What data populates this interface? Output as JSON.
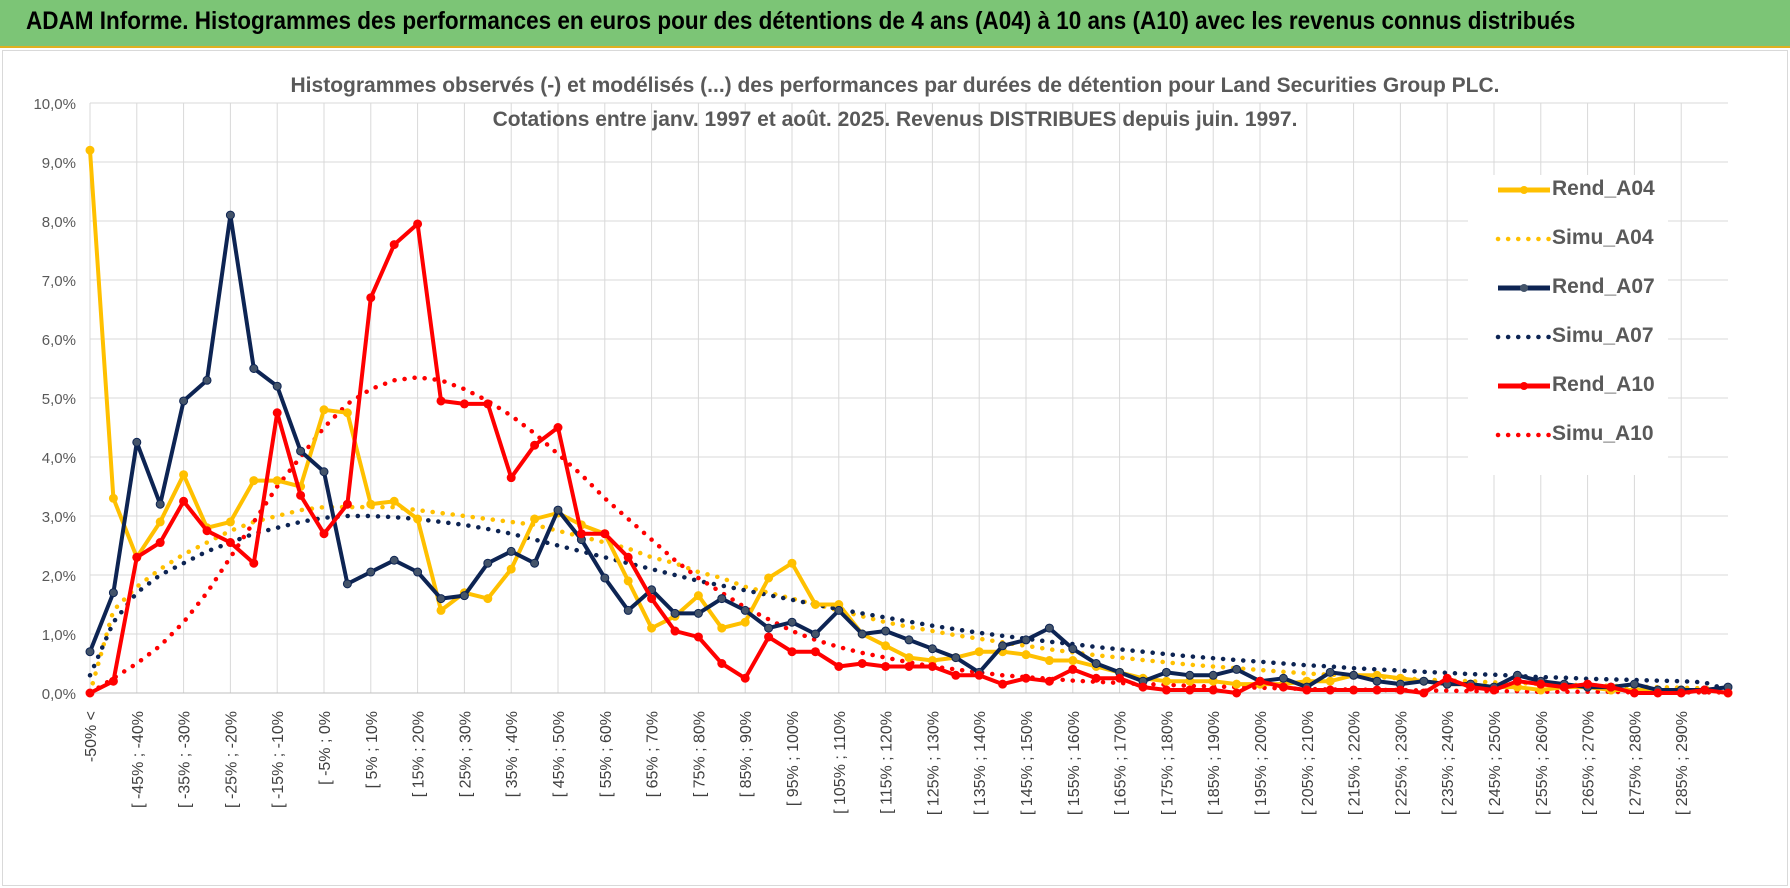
{
  "banner": {
    "title": "ADAM Informe. Histogrammes des performances en euros pour des détentions de 4 ans (A04) à 10 ans (A10) avec les revenus connus distribués"
  },
  "chart_data": {
    "type": "line",
    "title": "Histogrammes observés (-) et modélisés (...) des performances par durées de détention pour Land Securities Group PLC.",
    "subtitle": "Cotations entre janv. 1997 et août. 2025. Revenus DISTRIBUES depuis juin. 1997.",
    "ylim": [
      0,
      10
    ],
    "y_ticks": [
      "0,0%",
      "1,0%",
      "2,0%",
      "3,0%",
      "4,0%",
      "5,0%",
      "6,0%",
      "7,0%",
      "8,0%",
      "9,0%",
      "10,0%"
    ],
    "x_labels": [
      "-50% <",
      "[ -45% ; -40%",
      "[ -35% ; -30%",
      "[ -25% ; -20%",
      "[ -15% ; -10%",
      "[ -5% ; 0%",
      "[ 5% ; 10%",
      "[ 15% ; 20%",
      "[ 25% ; 30%",
      "[ 35% ; 40%",
      "[ 45% ; 50%",
      "[ 55% ; 60%",
      "[ 65% ; 70%",
      "[ 75% ; 80%",
      "[ 85% ; 90%",
      "[ 95% ; 100%",
      "[ 105% ; 110%",
      "[ 115% ; 120%",
      "[ 125% ; 130%",
      "[ 135% ; 140%",
      "[ 145% ; 150%",
      "[ 155% ; 160%",
      "[ 165% ; 170%",
      "[ 175% ; 180%",
      "[ 185% ; 190%",
      "[ 195% ; 200%",
      "[ 205% ; 210%",
      "[ 215% ; 220%",
      "[ 225% ; 230%",
      "[ 235% ; 240%",
      "[ 245% ; 250%",
      "[ 255% ; 260%",
      "[ 265% ; 270%",
      "[ 275% ; 280%",
      "[ 285% ; 290%"
    ],
    "grid": true,
    "legend_position": "right",
    "series": [
      {
        "name": "Rend_A04",
        "style": "solid",
        "color": "#ffc000",
        "values": [
          9.2,
          3.3,
          2.3,
          2.9,
          3.7,
          2.8,
          2.9,
          3.6,
          3.6,
          3.5,
          4.8,
          4.75,
          3.2,
          3.25,
          2.95,
          1.4,
          1.7,
          1.6,
          2.1,
          2.95,
          3.05,
          2.85,
          2.7,
          1.9,
          1.1,
          1.3,
          1.65,
          1.1,
          1.2,
          1.95,
          2.2,
          1.5,
          1.5,
          1.0,
          0.8,
          0.6,
          0.55,
          0.6,
          0.7,
          0.7,
          0.65,
          0.55,
          0.55,
          0.45,
          0.35,
          0.25,
          0.2,
          0.2,
          0.2,
          0.15,
          0.15,
          0.15,
          0.2,
          0.2,
          0.3,
          0.3,
          0.25,
          0.2,
          0.15,
          0.15,
          0.1,
          0.1,
          0.05,
          0.1,
          0.1,
          0.05,
          0.05,
          0.05,
          0.05,
          0.05,
          0.0
        ]
      },
      {
        "name": "Simu_A04",
        "style": "dotted",
        "color": "#ffc000",
        "values": [
          0.0,
          1.4,
          1.8,
          2.1,
          2.35,
          2.55,
          2.75,
          2.9,
          3.0,
          3.1,
          3.15,
          3.15,
          3.15,
          3.15,
          3.1,
          3.05,
          3.0,
          2.95,
          2.9,
          2.85,
          2.75,
          2.65,
          2.55,
          2.45,
          2.3,
          2.2,
          2.05,
          1.95,
          1.8,
          1.7,
          1.6,
          1.5,
          1.4,
          1.3,
          1.2,
          1.12,
          1.05,
          0.98,
          0.92,
          0.86,
          0.8,
          0.74,
          0.69,
          0.64,
          0.6,
          0.56,
          0.52,
          0.48,
          0.45,
          0.42,
          0.39,
          0.36,
          0.33,
          0.31,
          0.29,
          0.27,
          0.25,
          0.23,
          0.21,
          0.2,
          0.18,
          0.17,
          0.15,
          0.14,
          0.13,
          0.12,
          0.11,
          0.1,
          0.09,
          0.08,
          0.07
        ]
      },
      {
        "name": "Rend_A07",
        "style": "solid",
        "color": "#0d2453",
        "values": [
          0.7,
          1.7,
          4.25,
          3.2,
          4.95,
          5.3,
          8.1,
          5.5,
          5.2,
          4.1,
          3.75,
          1.85,
          2.05,
          2.25,
          2.05,
          1.6,
          1.65,
          2.2,
          2.4,
          2.2,
          3.1,
          2.6,
          1.95,
          1.4,
          1.75,
          1.35,
          1.35,
          1.6,
          1.4,
          1.1,
          1.2,
          1.0,
          1.4,
          1.0,
          1.05,
          0.9,
          0.75,
          0.6,
          0.35,
          0.8,
          0.9,
          1.1,
          0.75,
          0.5,
          0.35,
          0.2,
          0.35,
          0.3,
          0.3,
          0.4,
          0.2,
          0.25,
          0.1,
          0.35,
          0.3,
          0.2,
          0.15,
          0.2,
          0.15,
          0.15,
          0.1,
          0.3,
          0.2,
          0.15,
          0.1,
          0.1,
          0.15,
          0.05,
          0.05,
          0.05,
          0.1
        ]
      },
      {
        "name": "Simu_A07",
        "style": "dotted",
        "color": "#0d2453",
        "values": [
          0.3,
          1.2,
          1.7,
          2.0,
          2.2,
          2.4,
          2.55,
          2.7,
          2.8,
          2.9,
          2.97,
          3.0,
          3.0,
          2.98,
          2.95,
          2.9,
          2.85,
          2.78,
          2.7,
          2.6,
          2.5,
          2.4,
          2.3,
          2.2,
          2.1,
          2.0,
          1.9,
          1.82,
          1.74,
          1.66,
          1.58,
          1.5,
          1.42,
          1.35,
          1.28,
          1.21,
          1.14,
          1.08,
          1.02,
          0.97,
          0.92,
          0.87,
          0.83,
          0.78,
          0.74,
          0.7,
          0.66,
          0.62,
          0.59,
          0.56,
          0.53,
          0.5,
          0.47,
          0.45,
          0.42,
          0.4,
          0.38,
          0.36,
          0.34,
          0.32,
          0.31,
          0.29,
          0.27,
          0.26,
          0.24,
          0.23,
          0.22,
          0.21,
          0.2,
          0.18,
          0.05
        ]
      },
      {
        "name": "Rend_A10",
        "style": "solid",
        "color": "#ff0000",
        "values": [
          0.0,
          0.2,
          2.3,
          2.55,
          3.25,
          2.75,
          2.55,
          2.2,
          4.75,
          3.35,
          2.7,
          3.2,
          6.7,
          7.6,
          7.95,
          4.95,
          4.9,
          4.9,
          3.65,
          4.2,
          4.5,
          2.7,
          2.7,
          2.3,
          1.6,
          1.05,
          0.95,
          0.5,
          0.25,
          0.95,
          0.7,
          0.7,
          0.45,
          0.5,
          0.45,
          0.45,
          0.45,
          0.3,
          0.3,
          0.15,
          0.25,
          0.2,
          0.4,
          0.25,
          0.25,
          0.1,
          0.05,
          0.05,
          0.05,
          0.0,
          0.2,
          0.1,
          0.05,
          0.05,
          0.05,
          0.05,
          0.05,
          0.0,
          0.25,
          0.1,
          0.05,
          0.2,
          0.15,
          0.1,
          0.15,
          0.1,
          0.0,
          0.0,
          0.0,
          0.05,
          0.0
        ]
      },
      {
        "name": "Simu_A10",
        "style": "dotted",
        "color": "#ff0000",
        "values": [
          0.0,
          0.25,
          0.5,
          0.8,
          1.2,
          1.7,
          2.3,
          2.9,
          3.5,
          4.0,
          4.5,
          4.9,
          5.15,
          5.3,
          5.35,
          5.3,
          5.15,
          4.95,
          4.7,
          4.4,
          4.05,
          3.7,
          3.3,
          2.95,
          2.6,
          2.25,
          1.95,
          1.7,
          1.45,
          1.25,
          1.05,
          0.9,
          0.78,
          0.68,
          0.6,
          0.52,
          0.45,
          0.4,
          0.35,
          0.3,
          0.27,
          0.24,
          0.21,
          0.19,
          0.17,
          0.15,
          0.14,
          0.12,
          0.11,
          0.1,
          0.09,
          0.08,
          0.07,
          0.06,
          0.06,
          0.05,
          0.05,
          0.04,
          0.04,
          0.03,
          0.03,
          0.03,
          0.02,
          0.02,
          0.02,
          0.02,
          0.01,
          0.01,
          0.01,
          0.01,
          0.01
        ]
      }
    ]
  }
}
